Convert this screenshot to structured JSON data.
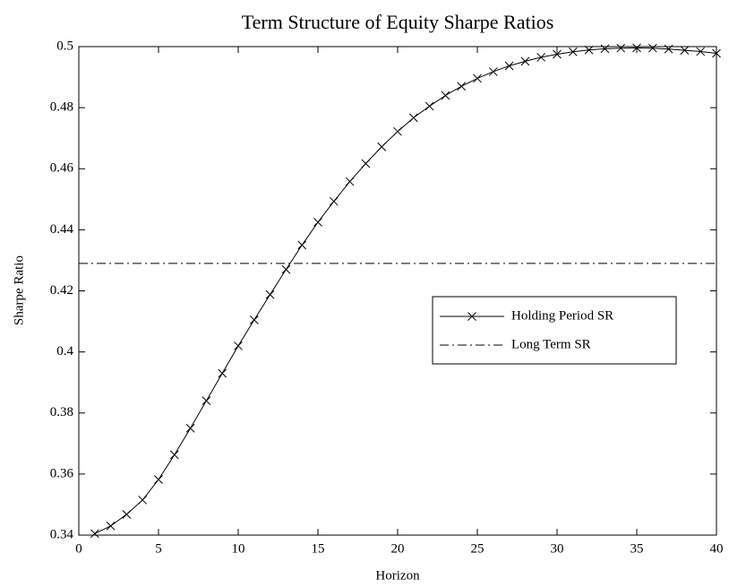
{
  "chart_data": {
    "type": "line",
    "title": "Term Structure of Equity Sharpe Ratios",
    "xlabel": "Horizon",
    "ylabel": "Sharpe Ratio",
    "series": [
      {
        "name": "Holding Period SR",
        "color": "#000000",
        "linestyle": "solid",
        "marker": "x",
        "x": [
          1,
          2,
          3,
          4,
          5,
          6,
          7,
          8,
          9,
          10,
          11,
          12,
          13,
          14,
          15,
          16,
          17,
          18,
          19,
          20,
          21,
          22,
          23,
          24,
          25,
          26,
          27,
          28,
          29,
          30,
          31,
          32,
          33,
          34,
          35,
          36,
          37,
          38,
          39,
          40
        ],
        "values": [
          0.3405,
          0.343,
          0.3468,
          0.3515,
          0.3582,
          0.3663,
          0.375,
          0.384,
          0.393,
          0.402,
          0.4105,
          0.4188,
          0.427,
          0.435,
          0.4425,
          0.4493,
          0.4558,
          0.4617,
          0.4672,
          0.4722,
          0.4767,
          0.4805,
          0.484,
          0.487,
          0.4896,
          0.4918,
          0.4937,
          0.4952,
          0.4965,
          0.4975,
          0.4983,
          0.4989,
          0.4993,
          0.4995,
          0.4996,
          0.4995,
          0.4992,
          0.4988,
          0.4984,
          0.4978
        ]
      },
      {
        "name": "Long Term SR",
        "color": "#000000",
        "linestyle": "dashdot",
        "marker": "none",
        "x": [
          0,
          40
        ],
        "values": [
          0.429,
          0.429
        ]
      }
    ],
    "xlim": [
      0,
      40
    ],
    "xticks": [
      0,
      5,
      10,
      15,
      20,
      25,
      30,
      35,
      40
    ],
    "ylim": [
      0.34,
      0.5
    ],
    "yticks": [
      0.34,
      0.36,
      0.38,
      0.4,
      0.42,
      0.44,
      0.46,
      0.48,
      0.5
    ],
    "grid": false,
    "legend": "center right"
  }
}
